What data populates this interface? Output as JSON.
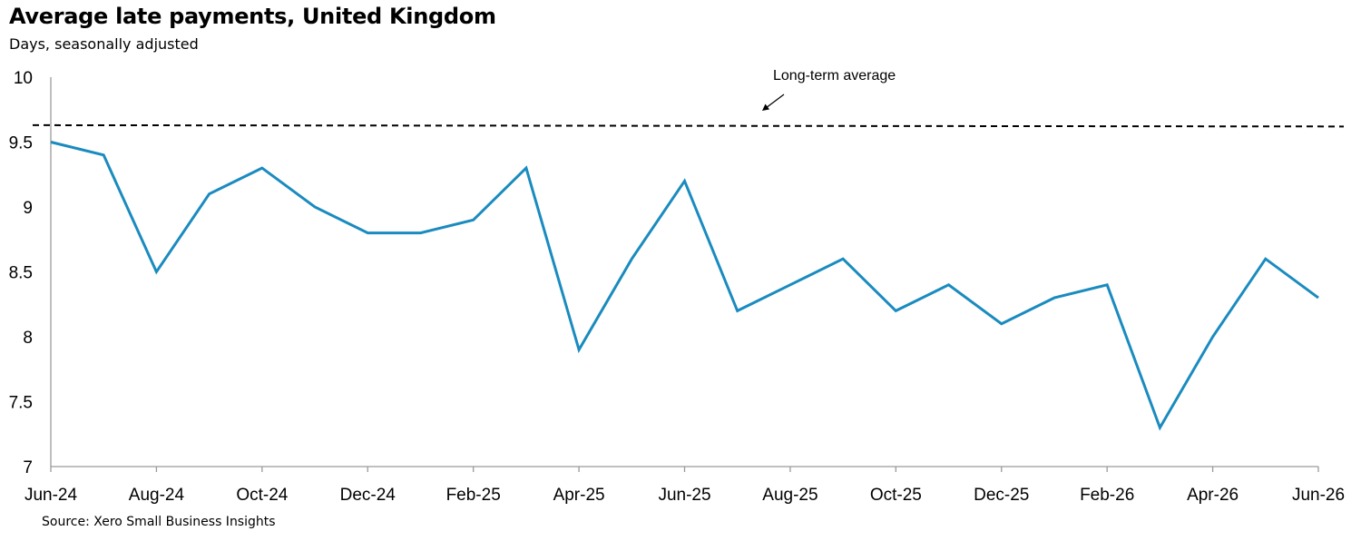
{
  "chart_data": {
    "type": "line",
    "title": "Average late payments, United Kingdom",
    "subtitle": "Days, seasonally adjusted",
    "source": "Source: Xero Small Business Insights",
    "ylim": [
      7,
      10
    ],
    "yticks": [
      "7",
      "7.5",
      "8",
      "8.5",
      "9",
      "9.5",
      "10"
    ],
    "x": [
      "Jun-24",
      "Jul-24",
      "Aug-24",
      "Sep-24",
      "Oct-24",
      "Nov-24",
      "Dec-24",
      "Jan-25",
      "Feb-25",
      "Mar-25",
      "Apr-25",
      "May-25",
      "Jun-25",
      "Jul-25",
      "Aug-25",
      "Sep-25",
      "Oct-25",
      "Nov-25",
      "Dec-25",
      "Jan-26",
      "Feb-26",
      "Mar-26",
      "Apr-26",
      "May-26",
      "Jun-26"
    ],
    "xtick_labels": [
      "Jun-24",
      "Aug-24",
      "Oct-24",
      "Dec-24",
      "Feb-25",
      "Apr-25",
      "Jun-25",
      "Aug-25",
      "Oct-25",
      "Dec-25",
      "Feb-26",
      "Apr-26",
      "Jun-26"
    ],
    "series": [
      {
        "values": [
          9.5,
          9.4,
          8.5,
          9.1,
          9.3,
          9.0,
          8.8,
          8.8,
          8.9,
          9.3,
          7.9,
          8.6,
          9.2,
          8.2,
          8.4,
          8.6,
          8.2,
          8.4,
          8.1,
          8.3,
          8.4,
          7.3,
          8.0,
          8.6,
          8.3
        ],
        "color": "#1a8bbf"
      }
    ],
    "reference_line": {
      "label": "Long-term average",
      "y_start": 9.63,
      "y_end": 9.62,
      "style": "dashed",
      "color": "#000000"
    },
    "grid": false
  }
}
